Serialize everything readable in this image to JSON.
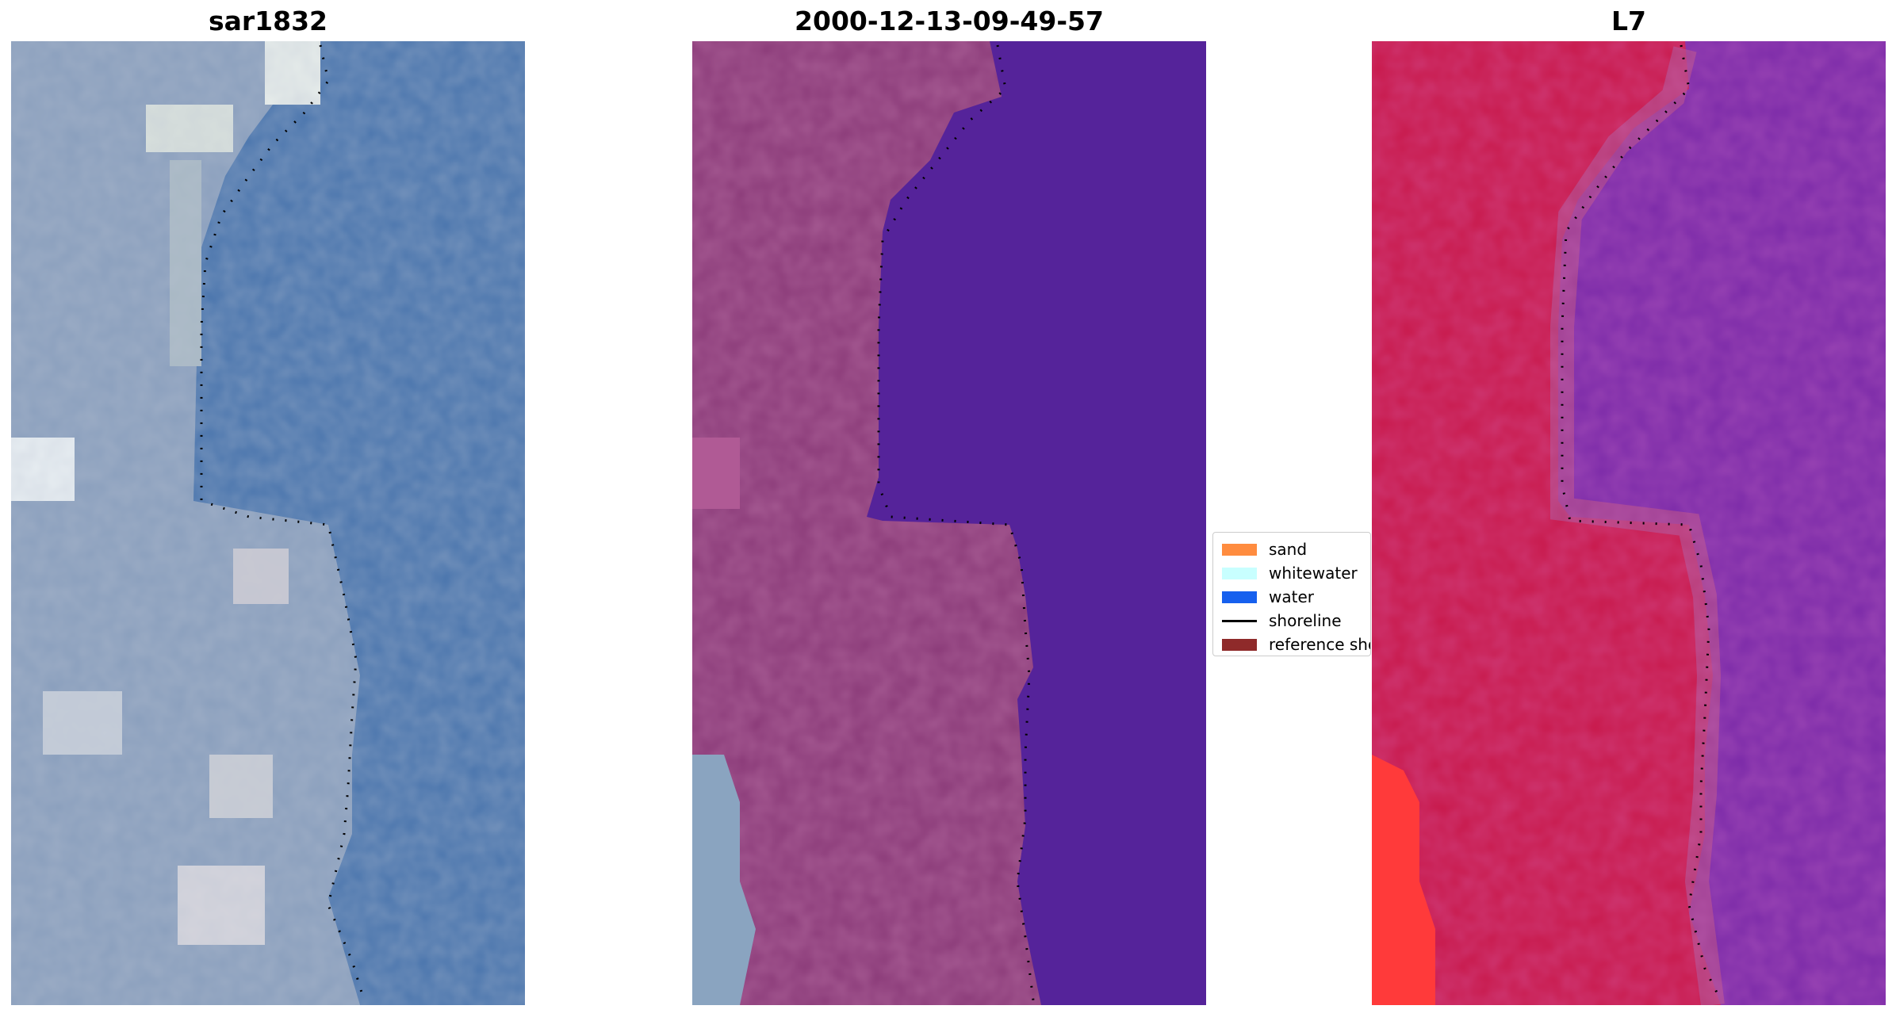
{
  "panels": [
    {
      "title": "sar1832"
    },
    {
      "title": "2000-12-13-09-49-57"
    },
    {
      "title": "L7"
    }
  ],
  "legend": {
    "items": [
      {
        "label": "sand",
        "color": "#ff8c3f",
        "kind": "patch"
      },
      {
        "label": "whitewater",
        "color": "#c8ffff",
        "kind": "patch"
      },
      {
        "label": "water",
        "color": "#1660ee",
        "kind": "patch"
      },
      {
        "label": "shoreline",
        "color": "#000000",
        "kind": "line"
      },
      {
        "label": "reference shoreline",
        "color": "#8f2a2a",
        "kind": "patch"
      }
    ]
  },
  "colors": {
    "rgb_water": "#4a75ad",
    "rgb_land": "#8a9fbd",
    "classified_water": "#55239a",
    "classified_land": "#8a3a78",
    "nir_land": "#c8184a",
    "nir_water": "#7b2aa8"
  }
}
